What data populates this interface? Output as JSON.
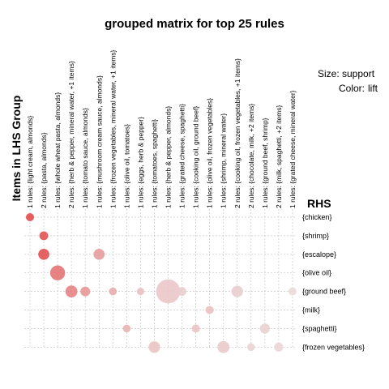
{
  "chart_data": {
    "type": "scatter",
    "title": "grouped matrix for top 25 rules",
    "xlabel": "Items in LHS Group",
    "ylabel": "RHS",
    "legend": {
      "size_label": "Size:",
      "size_value": "support",
      "color_label": "Color:",
      "color_value": "lift"
    },
    "lhs_groups": [
      "1 rules: {light cream, almonds}",
      "2 rules: {pasta, almonds}",
      "1 rules: {whole wheat pasta, almonds}",
      "2 rules: {herb & pepper, mineral water, +1 items}",
      "1 rules: {tomato sauce, almonds}",
      "1 rules: {mushroom cream sauce, almonds}",
      "1 rules: {frozen vegetables, mineral water, +1 items}",
      "1 rules: {olive oil, tomatoes}",
      "1 rules: {eggs, herb & pepper}",
      "1 rules: {tomatoes, spaghetti}",
      "1 rules: {herb & pepper, almonds}",
      "1 rules: {grated cheese, spaghetti}",
      "1 rules: {cooking oil, ground beef}",
      "1 rules: {olive oil, frozen vegetables}",
      "1 rules: {shrimp, mineral water}",
      "2 rules: {cooking oil, frozen vegetables, +1 items}",
      "2 rules: {chocolate, milk, +2 items}",
      "1 rules: {ground beef, shrimp}",
      "2 rules: {milk, spaghetti, +2 items}",
      "1 rules: {grated cheese, mineral water}"
    ],
    "rhs_items": [
      "{chicken}",
      "{shrimp}",
      "{escalope}",
      "{olive oil}",
      "{ground beef}",
      "{milk}",
      "{spaghetti}",
      "{frozen vegetables}"
    ],
    "points": [
      {
        "lhs": 0,
        "rhs": 0,
        "support": 0.6,
        "lift": 0.95
      },
      {
        "lhs": 1,
        "rhs": 1,
        "support": 0.7,
        "lift": 0.9
      },
      {
        "lhs": 1,
        "rhs": 2,
        "support": 1.1,
        "lift": 0.92
      },
      {
        "lhs": 2,
        "rhs": 3,
        "support": 2.0,
        "lift": 0.7
      },
      {
        "lhs": 3,
        "rhs": 4,
        "support": 1.3,
        "lift": 0.6
      },
      {
        "lhs": 4,
        "rhs": 4,
        "support": 0.85,
        "lift": 0.48
      },
      {
        "lhs": 5,
        "rhs": 2,
        "support": 1.1,
        "lift": 0.45
      },
      {
        "lhs": 6,
        "rhs": 4,
        "support": 0.55,
        "lift": 0.35
      },
      {
        "lhs": 7,
        "rhs": 6,
        "support": 0.55,
        "lift": 0.3
      },
      {
        "lhs": 8,
        "rhs": 4,
        "support": 0.5,
        "lift": 0.22
      },
      {
        "lhs": 9,
        "rhs": 7,
        "support": 1.2,
        "lift": 0.2
      },
      {
        "lhs": 10,
        "rhs": 4,
        "support": 5.2,
        "lift": 0.18
      },
      {
        "lhs": 11,
        "rhs": 4,
        "support": 0.7,
        "lift": 0.14
      },
      {
        "lhs": 12,
        "rhs": 6,
        "support": 0.6,
        "lift": 0.2
      },
      {
        "lhs": 13,
        "rhs": 5,
        "support": 0.6,
        "lift": 0.22
      },
      {
        "lhs": 14,
        "rhs": 7,
        "support": 1.3,
        "lift": 0.16
      },
      {
        "lhs": 15,
        "rhs": 4,
        "support": 1.2,
        "lift": 0.14
      },
      {
        "lhs": 16,
        "rhs": 7,
        "support": 0.55,
        "lift": 0.1
      },
      {
        "lhs": 17,
        "rhs": 6,
        "support": 0.9,
        "lift": 0.12
      },
      {
        "lhs": 18,
        "rhs": 7,
        "support": 0.75,
        "lift": 0.08
      },
      {
        "lhs": 19,
        "rhs": 4,
        "support": 0.6,
        "lift": 0.06
      }
    ],
    "colors": {
      "high": "#e14444",
      "low": "#ece4e4"
    },
    "grid": true
  }
}
